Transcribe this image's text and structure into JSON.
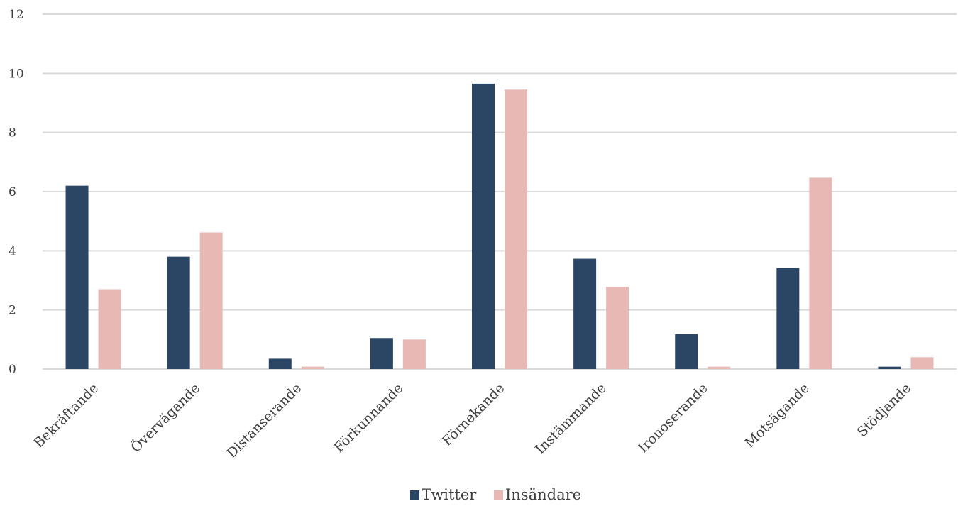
{
  "chart_data": {
    "type": "bar",
    "categories": [
      "Bekräftande",
      "Övervägande",
      "Distanserande",
      "Förkunnande",
      "Förnekande",
      "Instämmande",
      "Ironoserande",
      "Motsägande",
      "Stödjande"
    ],
    "series": [
      {
        "name": "Twitter",
        "color": "#2b4664",
        "values": [
          6.2,
          3.8,
          0.35,
          1.05,
          9.65,
          3.73,
          1.18,
          3.42,
          0.08
        ]
      },
      {
        "name": "Insändare",
        "color": "#e8b8b5",
        "values": [
          2.7,
          4.62,
          0.08,
          1.0,
          9.45,
          2.78,
          0.08,
          6.47,
          0.4
        ]
      }
    ],
    "yticks": [
      "0",
      "2",
      "4",
      "6",
      "8",
      "10",
      "12"
    ],
    "ylim": [
      0,
      12
    ],
    "grid": true,
    "legend_position": "bottom"
  }
}
